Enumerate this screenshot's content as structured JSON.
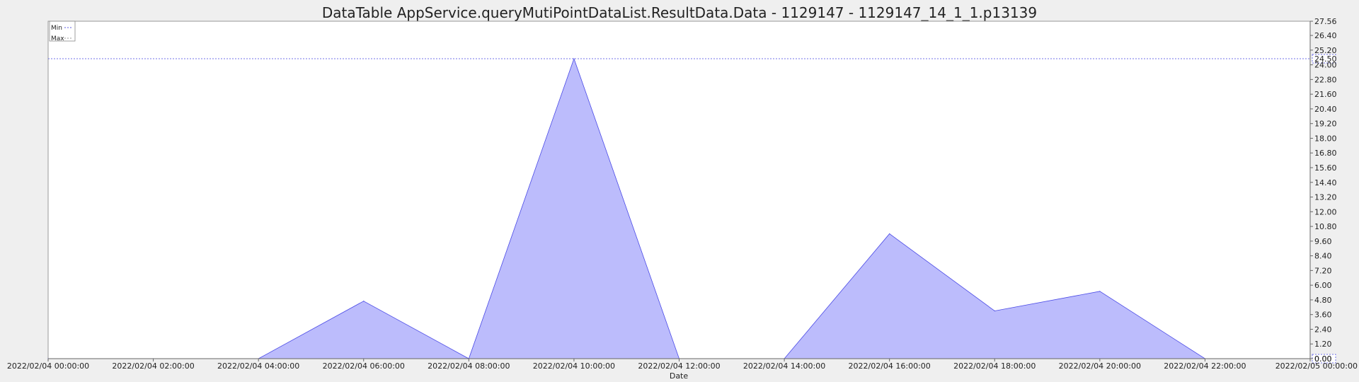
{
  "chart_data": {
    "type": "area",
    "title": "DataTable AppService.queryMutiPointDataList.ResultData.Data - 1129147 - 1129147_14_1_1.p13139",
    "xlabel": "Date",
    "ylabel": "",
    "x": [
      "2022/02/04 00:00:00",
      "2022/02/04 02:00:00",
      "2022/02/04 04:00:00",
      "2022/02/04 06:00:00",
      "2022/02/04 08:00:00",
      "2022/02/04 10:00:00",
      "2022/02/04 12:00:00",
      "2022/02/04 14:00:00",
      "2022/02/04 16:00:00",
      "2022/02/04 18:00:00",
      "2022/02/04 20:00:00",
      "2022/02/04 22:00:00",
      "2022/02/05 00:00:00"
    ],
    "values": [
      0,
      0,
      0,
      4.7,
      0,
      24.5,
      0,
      0,
      10.2,
      3.9,
      5.5,
      0,
      0
    ],
    "ylim": [
      0,
      27.56
    ],
    "yticks": [
      "0.00",
      "1.20",
      "2.40",
      "3.60",
      "4.80",
      "6.00",
      "7.20",
      "8.40",
      "9.60",
      "10.80",
      "12.00",
      "13.20",
      "14.40",
      "15.60",
      "16.80",
      "18.00",
      "19.20",
      "20.40",
      "21.60",
      "22.80",
      "24.00",
      "25.20",
      "26.40",
      "27.56"
    ],
    "legend": [
      {
        "name": "Min",
        "color": "#5b5be0"
      },
      {
        "name": "Max",
        "color": "#9a9a9a"
      }
    ],
    "reference_line": {
      "value": 24.5,
      "label": "24.50"
    },
    "min_marker": {
      "value": 0,
      "label": "0.00"
    },
    "legend_position": "top-left",
    "grid": false,
    "colors": {
      "fill": "#bcbcfc",
      "stroke": "#4a4ae6",
      "ref": "#7070e8"
    }
  }
}
